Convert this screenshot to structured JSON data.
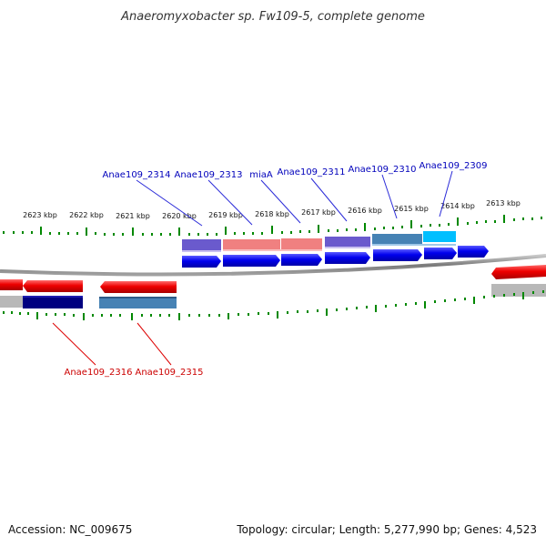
{
  "title": "Anaeromyxobacter sp. Fw109-5, complete genome",
  "footer": {
    "accession": "Accession: NC_009675",
    "topology": "Topology: circular; Length: 5,277,990 bp; Genes: 4,523"
  },
  "scale_labels": [
    "2623 kbp",
    "2622 kbp",
    "2621 kbp",
    "2620 kbp",
    "2619 kbp",
    "2618 kbp",
    "2617 kbp",
    "2616 kbp",
    "2615 kbp",
    "2614 kbp",
    "2613 kbp"
  ],
  "gene_labels_top": [
    "Anae109_2314",
    "Anae109_2313",
    "miaA",
    "Anae109_2311",
    "Anae109_2310",
    "Anae109_2309"
  ],
  "gene_labels_bottom": [
    "Anae109_2316",
    "Anae109_2315"
  ],
  "colors": {
    "forward_gene": "#0000ee",
    "reverse_gene": "#ee0000",
    "label_forward": "#0000bb",
    "label_reverse": "#cc0000",
    "tick": "#008800",
    "backbone": "#777777"
  }
}
